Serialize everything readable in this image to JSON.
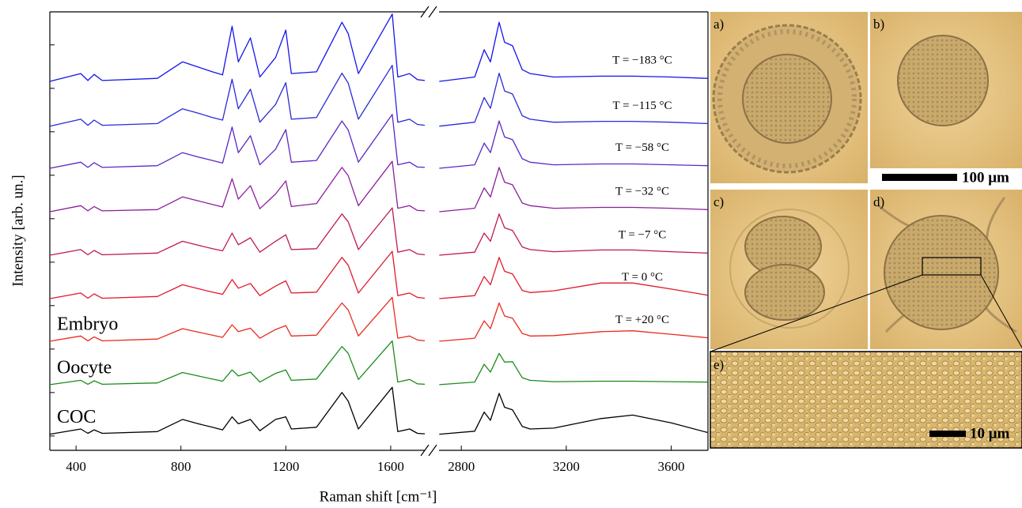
{
  "chart_data": {
    "type": "line",
    "xlabel": "Raman shift [cm⁻¹]",
    "ylabel": "Intensity [arb. un.]",
    "x_segments": [
      {
        "xlim": [
          300,
          1730
        ],
        "xticks": [
          400,
          800,
          1200,
          1600
        ],
        "x": [
          300,
          418,
          445,
          469,
          500,
          710,
          806,
          866,
          920,
          959,
          995,
          1019,
          1065,
          1101,
          1161,
          1200,
          1221,
          1317,
          1414,
          1438,
          1477,
          1606,
          1627,
          1672,
          1702,
          1730
        ]
      },
      {
        "xlim": [
          2715,
          3740
        ],
        "xticks": [
          2800,
          3200,
          3600
        ],
        "x": [
          2716,
          2851,
          2887,
          2911,
          2944,
          2965,
          2995,
          3032,
          3062,
          3152,
          3332,
          3453,
          3600,
          3738
        ]
      }
    ],
    "ylim": [
      0.67,
      10.76
    ],
    "yticks": [
      1,
      2,
      3,
      4,
      5,
      6,
      7,
      8,
      9,
      10
    ],
    "series": [
      {
        "label": "T = −183 °C",
        "color": "#1414f0",
        "values": [
          [
            9.16,
            9.34,
            9.18,
            9.32,
            9.18,
            9.23,
            9.61,
            9.49,
            9.38,
            9.31,
            10.43,
            9.61,
            10.16,
            9.26,
            9.71,
            10.34,
            9.34,
            9.38,
            10.52,
            10.26,
            9.34,
            10.71,
            9.26,
            9.34,
            9.2,
            9.18
          ],
          [
            9.16,
            9.26,
            9.89,
            9.61,
            10.52,
            10.06,
            9.98,
            9.43,
            9.34,
            9.26,
            9.28,
            9.28,
            9.26,
            9.23
          ]
        ]
      },
      {
        "label": "T = −115 °C",
        "color": "#2a2ad8",
        "values": [
          [
            8.13,
            8.29,
            8.15,
            8.27,
            8.15,
            8.19,
            8.53,
            8.43,
            8.33,
            8.27,
            9.21,
            8.53,
            8.98,
            8.22,
            8.63,
            9.13,
            8.29,
            8.33,
            9.35,
            9.12,
            8.29,
            9.53,
            8.22,
            8.29,
            8.17,
            8.15
          ],
          [
            8.13,
            8.22,
            8.79,
            8.54,
            9.35,
            8.94,
            8.87,
            8.37,
            8.29,
            8.22,
            8.24,
            8.24,
            8.22,
            8.19
          ]
        ]
      },
      {
        "label": "T = −58 °C",
        "color": "#5a28c4",
        "values": [
          [
            7.16,
            7.3,
            7.18,
            7.29,
            7.18,
            7.22,
            7.52,
            7.42,
            7.34,
            7.28,
            8.11,
            7.52,
            7.91,
            7.24,
            7.6,
            8.05,
            7.3,
            7.34,
            8.25,
            8.04,
            7.3,
            8.4,
            7.24,
            7.3,
            7.19,
            7.18
          ],
          [
            7.16,
            7.24,
            7.74,
            7.52,
            8.25,
            7.88,
            7.82,
            7.38,
            7.3,
            7.24,
            7.26,
            7.26,
            7.24,
            7.22
          ]
        ]
      },
      {
        "label": "T = −32 °C",
        "color": "#8c1e9c",
        "values": [
          [
            6.16,
            6.3,
            6.18,
            6.28,
            6.18,
            6.21,
            6.5,
            6.41,
            6.33,
            6.27,
            6.92,
            6.45,
            6.76,
            6.23,
            6.57,
            6.87,
            6.28,
            6.35,
            7.18,
            6.99,
            6.3,
            7.32,
            6.24,
            6.3,
            6.19,
            6.18
          ],
          [
            6.16,
            6.24,
            6.71,
            6.5,
            7.18,
            6.84,
            6.78,
            6.36,
            6.3,
            6.24,
            6.26,
            6.26,
            6.24,
            6.21
          ]
        ]
      },
      {
        "label": "T = −7 °C",
        "color": "#c01850",
        "values": [
          [
            5.16,
            5.29,
            5.17,
            5.27,
            5.17,
            5.21,
            5.48,
            5.39,
            5.31,
            5.26,
            5.67,
            5.4,
            5.56,
            5.23,
            5.48,
            5.63,
            5.29,
            5.31,
            6.11,
            5.93,
            5.29,
            6.25,
            5.23,
            5.29,
            5.19,
            5.17
          ],
          [
            5.16,
            5.23,
            5.67,
            5.48,
            6.11,
            5.79,
            5.73,
            5.35,
            5.29,
            5.24,
            5.28,
            5.28,
            5.24,
            5.21
          ]
        ]
      },
      {
        "label": "T = 0 °C",
        "color": "#e0182c",
        "values": [
          [
            4.16,
            4.29,
            4.17,
            4.27,
            4.17,
            4.21,
            4.48,
            4.39,
            4.31,
            4.26,
            4.6,
            4.4,
            4.51,
            4.23,
            4.45,
            4.57,
            4.29,
            4.31,
            5.11,
            4.93,
            4.29,
            5.25,
            4.23,
            4.29,
            4.19,
            4.17
          ],
          [
            4.16,
            4.23,
            4.67,
            4.48,
            5.11,
            4.79,
            4.73,
            4.35,
            4.3,
            4.34,
            4.52,
            4.52,
            4.38,
            4.24
          ]
        ]
      },
      {
        "label": "T = +20 °C",
        "sample_label": "Embryo",
        "color": "#ea2a1e",
        "values": [
          [
            3.18,
            3.3,
            3.19,
            3.28,
            3.19,
            3.23,
            3.47,
            3.39,
            3.32,
            3.27,
            3.56,
            3.4,
            3.48,
            3.25,
            3.45,
            3.54,
            3.3,
            3.32,
            4.06,
            3.9,
            3.3,
            4.19,
            3.25,
            3.3,
            3.21,
            3.19
          ],
          [
            3.18,
            3.25,
            3.65,
            3.47,
            4.06,
            3.76,
            3.71,
            3.36,
            3.3,
            3.31,
            3.4,
            3.42,
            3.34,
            3.26
          ]
        ]
      },
      {
        "sample_label": "Oocyte",
        "color": "#1a8c1a",
        "values": [
          [
            2.18,
            2.28,
            2.19,
            2.27,
            2.19,
            2.22,
            2.46,
            2.38,
            2.31,
            2.26,
            2.52,
            2.38,
            2.47,
            2.24,
            2.44,
            2.52,
            2.28,
            2.31,
            3.06,
            2.9,
            2.3,
            3.19,
            2.24,
            2.3,
            2.2,
            2.19
          ],
          [
            2.18,
            2.24,
            2.65,
            2.47,
            2.9,
            2.7,
            2.71,
            2.34,
            2.28,
            2.25,
            2.26,
            2.26,
            2.25,
            2.24
          ]
        ]
      },
      {
        "sample_label": "COC",
        "color": "#000000",
        "values": [
          [
            1.04,
            1.16,
            1.06,
            1.14,
            1.06,
            1.1,
            1.38,
            1.28,
            1.2,
            1.14,
            1.44,
            1.28,
            1.38,
            1.12,
            1.38,
            1.44,
            1.16,
            1.2,
            2.0,
            1.8,
            1.16,
            2.12,
            1.1,
            1.16,
            1.06,
            1.05
          ],
          [
            1.04,
            1.11,
            1.55,
            1.36,
            1.98,
            1.66,
            1.6,
            1.22,
            1.16,
            1.18,
            1.4,
            1.48,
            1.3,
            1.08
          ]
        ]
      }
    ]
  },
  "micrographs": {
    "panels": [
      {
        "label": "a)"
      },
      {
        "label": "b)"
      },
      {
        "label": "c)"
      },
      {
        "label": "d)"
      },
      {
        "label": "e)"
      }
    ],
    "scale_bars": [
      "100 μm",
      "10 μm"
    ]
  }
}
